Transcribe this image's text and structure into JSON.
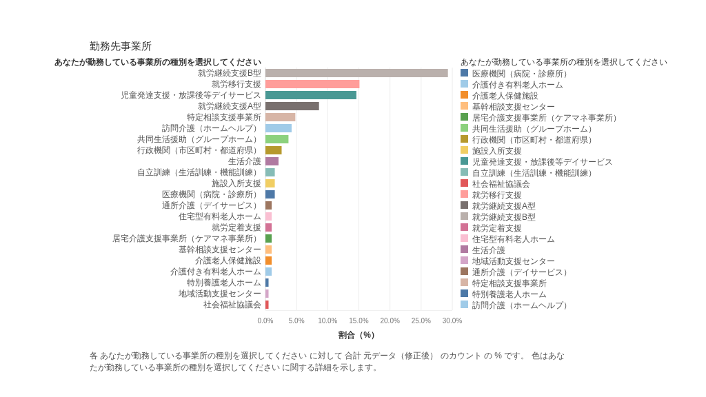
{
  "chart_data": {
    "type": "bar",
    "orientation": "horizontal",
    "title": "勤務先事業所",
    "ylabel": "あなたが勤務している事業所の種別を選択してください",
    "xlabel": "割合（%）",
    "legend_title": "あなたが勤務している事業所の種別を選択してください",
    "legend": "right",
    "grid": "x",
    "categories": [
      "就労継続支援B型",
      "就労移行支援",
      "児童発達支援・放課後等デイサービス",
      "就労継続支援A型",
      "特定相談支援事業所",
      "訪問介護（ホームヘルプ）",
      "共同生活援助（グループホーム）",
      "行政機関（市区町村・都道府県）",
      "生活介護",
      "自立訓練（生活訓練・機能訓練）",
      "施設入所支援",
      "医療機関（病院・診療所）",
      "通所介護（デイサービス）",
      "住宅型有料老人ホーム",
      "就労定着支援",
      "居宅介護支援事業所（ケアマネ事業所）",
      "基幹相談支援センター",
      "介護老人保健施設",
      "介護付き有料老人ホーム",
      "特別養護老人ホーム",
      "地域活動支援センター",
      "社会福祉協議会"
    ],
    "series": [
      {
        "name": "医療機関（病院・診療所）",
        "color": "#4e79a7",
        "values": [
          null,
          null,
          null,
          null,
          null,
          null,
          null,
          null,
          null,
          null,
          null,
          1.5,
          null,
          null,
          null,
          null,
          null,
          null,
          null,
          null,
          null,
          null
        ]
      },
      {
        "name": "介護付き有料老人ホーム",
        "color": "#a0cbe8",
        "values": [
          null,
          null,
          null,
          null,
          null,
          null,
          null,
          null,
          null,
          null,
          null,
          null,
          null,
          null,
          null,
          null,
          null,
          null,
          1.0,
          null,
          null,
          null
        ]
      },
      {
        "name": "介護老人保健施設",
        "color": "#f28e2b",
        "values": [
          null,
          null,
          null,
          null,
          null,
          null,
          null,
          null,
          null,
          null,
          null,
          null,
          null,
          null,
          null,
          null,
          null,
          1.0,
          null,
          null,
          null,
          null
        ]
      },
      {
        "name": "基幹相談支援センター",
        "color": "#ffbe7d",
        "values": [
          null,
          null,
          null,
          null,
          null,
          null,
          null,
          null,
          null,
          null,
          null,
          null,
          null,
          null,
          null,
          null,
          1.0,
          null,
          null,
          null,
          null,
          null
        ]
      },
      {
        "name": "居宅介護支援事業所（ケアマネ事業所）",
        "color": "#59a14f",
        "values": [
          null,
          null,
          null,
          null,
          null,
          null,
          null,
          null,
          null,
          null,
          null,
          null,
          null,
          null,
          null,
          1.0,
          null,
          null,
          null,
          null,
          null,
          null
        ]
      },
      {
        "name": "共同生活援助（グループホーム）",
        "color": "#8cd17d",
        "values": [
          null,
          null,
          null,
          null,
          null,
          null,
          3.7,
          null,
          null,
          null,
          null,
          null,
          null,
          null,
          null,
          null,
          null,
          null,
          null,
          null,
          null,
          null
        ]
      },
      {
        "name": "行政機関（市区町村・都道府県）",
        "color": "#b6992d",
        "values": [
          null,
          null,
          null,
          null,
          null,
          null,
          null,
          2.6,
          null,
          null,
          null,
          null,
          null,
          null,
          null,
          null,
          null,
          null,
          null,
          null,
          null,
          null
        ]
      },
      {
        "name": "施設入所支援",
        "color": "#f1ce63",
        "values": [
          null,
          null,
          null,
          null,
          null,
          null,
          null,
          null,
          null,
          null,
          1.5,
          null,
          null,
          null,
          null,
          null,
          null,
          null,
          null,
          null,
          null,
          null
        ]
      },
      {
        "name": "児童発達支援・放課後等デイサービス",
        "color": "#499894",
        "values": [
          null,
          null,
          14.6,
          null,
          null,
          null,
          null,
          null,
          null,
          null,
          null,
          null,
          null,
          null,
          null,
          null,
          null,
          null,
          null,
          null,
          null,
          null
        ]
      },
      {
        "name": "自立訓練（生活訓練・機能訓練）",
        "color": "#86bcb6",
        "values": [
          null,
          null,
          null,
          null,
          null,
          null,
          null,
          null,
          null,
          1.5,
          null,
          null,
          null,
          null,
          null,
          null,
          null,
          null,
          null,
          null,
          null,
          null
        ]
      },
      {
        "name": "社会福祉協議会",
        "color": "#e15759",
        "values": [
          null,
          null,
          null,
          null,
          null,
          null,
          null,
          null,
          null,
          null,
          null,
          null,
          null,
          null,
          null,
          null,
          null,
          null,
          null,
          null,
          null,
          0.5
        ]
      },
      {
        "name": "就労移行支援",
        "color": "#ff9d9a",
        "values": [
          null,
          15.1,
          null,
          null,
          null,
          null,
          null,
          null,
          null,
          null,
          null,
          null,
          null,
          null,
          null,
          null,
          null,
          null,
          null,
          null,
          null,
          null
        ]
      },
      {
        "name": "就労継続支援A型",
        "color": "#79706e",
        "values": [
          null,
          null,
          null,
          8.6,
          null,
          null,
          null,
          null,
          null,
          null,
          null,
          null,
          null,
          null,
          null,
          null,
          null,
          null,
          null,
          null,
          null,
          null
        ]
      },
      {
        "name": "就労継続支援B型",
        "color": "#bab0ac",
        "values": [
          29.3,
          null,
          null,
          null,
          null,
          null,
          null,
          null,
          null,
          null,
          null,
          null,
          null,
          null,
          null,
          null,
          null,
          null,
          null,
          null,
          null,
          null
        ]
      },
      {
        "name": "就労定着支援",
        "color": "#d37295",
        "values": [
          null,
          null,
          null,
          null,
          null,
          null,
          null,
          null,
          null,
          null,
          null,
          null,
          null,
          null,
          1.0,
          null,
          null,
          null,
          null,
          null,
          null,
          null
        ]
      },
      {
        "name": "住宅型有料老人ホーム",
        "color": "#fabfd2",
        "values": [
          null,
          null,
          null,
          null,
          null,
          null,
          null,
          null,
          null,
          null,
          null,
          null,
          null,
          1.0,
          null,
          null,
          null,
          null,
          null,
          null,
          null,
          null
        ]
      },
      {
        "name": "生活介護",
        "color": "#b07aa1",
        "values": [
          null,
          null,
          null,
          null,
          null,
          null,
          null,
          null,
          2.1,
          null,
          null,
          null,
          null,
          null,
          null,
          null,
          null,
          null,
          null,
          null,
          null,
          null
        ]
      },
      {
        "name": "地域活動支援センター",
        "color": "#d4a6c8",
        "values": [
          null,
          null,
          null,
          null,
          null,
          null,
          null,
          null,
          null,
          null,
          null,
          null,
          null,
          null,
          null,
          null,
          null,
          null,
          null,
          null,
          0.5,
          null
        ]
      },
      {
        "name": "通所介護（デイサービス）",
        "color": "#9d7660",
        "values": [
          null,
          null,
          null,
          null,
          null,
          null,
          null,
          null,
          null,
          null,
          null,
          null,
          1.0,
          null,
          null,
          null,
          null,
          null,
          null,
          null,
          null,
          null
        ]
      },
      {
        "name": "特定相談支援事業所",
        "color": "#d7b5a6",
        "values": [
          null,
          null,
          null,
          null,
          4.8,
          null,
          null,
          null,
          null,
          null,
          null,
          null,
          null,
          null,
          null,
          null,
          null,
          null,
          null,
          null,
          null,
          null
        ]
      },
      {
        "name": "特別養護老人ホーム",
        "color": "#4e79a7",
        "values": [
          null,
          null,
          null,
          null,
          null,
          null,
          null,
          null,
          null,
          null,
          null,
          null,
          null,
          null,
          null,
          null,
          null,
          null,
          null,
          0.5,
          null,
          null
        ]
      },
      {
        "name": "訪問介護（ホームヘルプ）",
        "color": "#a0cbe8",
        "values": [
          null,
          null,
          null,
          null,
          null,
          4.2,
          null,
          null,
          null,
          null,
          null,
          null,
          null,
          null,
          null,
          null,
          null,
          null,
          null,
          null,
          null,
          null
        ]
      }
    ],
    "xlim": [
      0,
      30
    ],
    "xticks": [
      {
        "value": 0,
        "label": "0.0%"
      },
      {
        "value": 5,
        "label": "5.0%"
      },
      {
        "value": 10,
        "label": "10.0%"
      },
      {
        "value": 15,
        "label": "15.0%"
      },
      {
        "value": 20,
        "label": "20.0%"
      },
      {
        "value": 25,
        "label": "25.0%"
      },
      {
        "value": 30,
        "label": "30.0%"
      }
    ],
    "annotations": [
      "各 あなたが勤務している事業所の種別を選択してください に対して 合計 元データ（修正後） のカウント の % です。 色はあなたが勤務している事業所の種別を選択してください に関する詳細を示します。"
    ]
  }
}
